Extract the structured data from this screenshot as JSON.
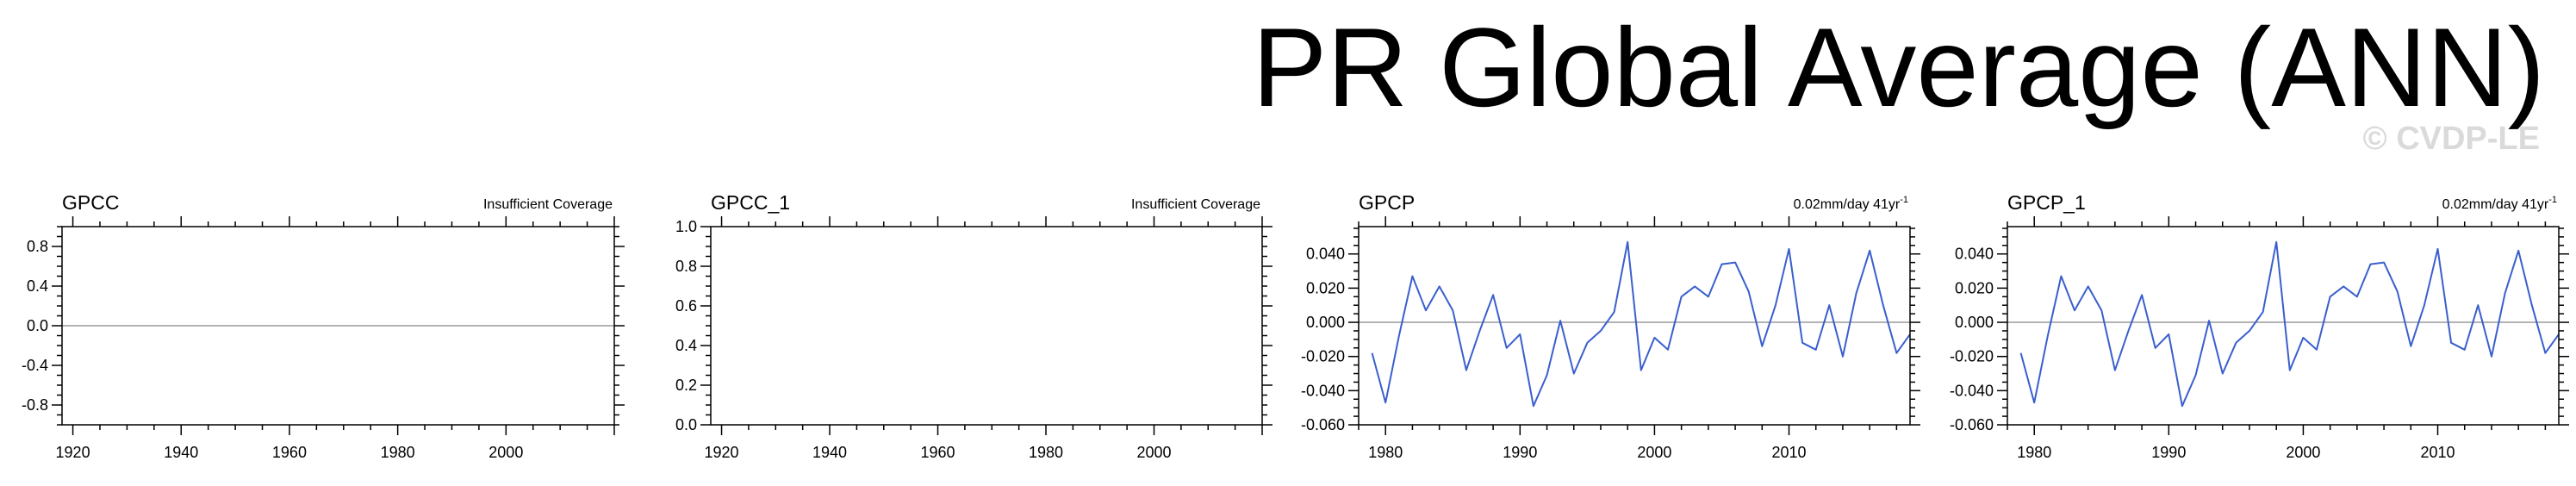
{
  "title": "PR Global Average (ANN)",
  "watermark": "© CVDP-LE",
  "colors": {
    "series": "#3a5fcd",
    "zero_line": "#9a9a9a",
    "axis": "#000000"
  },
  "chart_data": [
    {
      "type": "line",
      "name": "GPCC",
      "note": "Insufficient Coverage",
      "note_sup": "",
      "xlim": [
        1918,
        2020
      ],
      "xticks": [
        1920,
        1940,
        1960,
        1980,
        2000
      ],
      "ylim": [
        -1.0,
        1.0
      ],
      "yticks": [
        0.8,
        0.4,
        0.0,
        -0.4,
        -0.8
      ],
      "ytick_labels": [
        "0.8",
        "0.4",
        "0.0",
        "-0.4",
        "-0.8"
      ],
      "zero_line": true,
      "x": [],
      "y": []
    },
    {
      "type": "line",
      "name": "GPCC_1",
      "note": "Insufficient Coverage",
      "note_sup": "",
      "xlim": [
        1918,
        2020
      ],
      "xticks": [
        1920,
        1940,
        1960,
        1980,
        2000
      ],
      "ylim": [
        0.0,
        1.0
      ],
      "yticks": [
        1.0,
        0.8,
        0.6,
        0.4,
        0.2,
        0.0
      ],
      "ytick_labels": [
        "1.0",
        "0.8",
        "0.6",
        "0.4",
        "0.2",
        "0.0"
      ],
      "zero_line": false,
      "x": [],
      "y": []
    },
    {
      "type": "line",
      "name": "GPCP",
      "note": "0.02mm/day 41yr",
      "note_sup": "-1",
      "xlim": [
        1978,
        2019
      ],
      "xticks": [
        1980,
        1990,
        2000,
        2010
      ],
      "ylim": [
        -0.06,
        0.056
      ],
      "yticks": [
        0.04,
        0.02,
        0.0,
        -0.02,
        -0.04,
        -0.06
      ],
      "ytick_labels": [
        "0.040",
        "0.020",
        "0.000",
        "-0.020",
        "-0.040",
        "-0.060"
      ],
      "zero_line": true,
      "x": [
        1979,
        1980,
        1981,
        1982,
        1983,
        1984,
        1985,
        1986,
        1987,
        1988,
        1989,
        1990,
        1991,
        1992,
        1993,
        1994,
        1995,
        1996,
        1997,
        1998,
        1999,
        2000,
        2001,
        2002,
        2003,
        2004,
        2005,
        2006,
        2007,
        2008,
        2009,
        2010,
        2011,
        2012,
        2013,
        2014,
        2015,
        2016,
        2017,
        2018,
        2019
      ],
      "y": [
        -0.018,
        -0.047,
        -0.008,
        0.027,
        0.007,
        0.021,
        0.007,
        -0.028,
        -0.005,
        0.016,
        -0.015,
        -0.007,
        -0.049,
        -0.031,
        0.001,
        -0.03,
        -0.012,
        -0.005,
        0.006,
        0.047,
        -0.028,
        -0.009,
        -0.016,
        0.015,
        0.021,
        0.015,
        0.034,
        0.035,
        0.018,
        -0.014,
        0.01,
        0.043,
        -0.012,
        -0.016,
        0.01,
        -0.02,
        0.017,
        0.042,
        0.01,
        -0.018,
        -0.007
      ]
    },
    {
      "type": "line",
      "name": "GPCP_1",
      "note": "0.02mm/day 41yr",
      "note_sup": "-1",
      "xlim": [
        1978,
        2019
      ],
      "xticks": [
        1980,
        1990,
        2000,
        2010
      ],
      "ylim": [
        -0.06,
        0.056
      ],
      "yticks": [
        0.04,
        0.02,
        0.0,
        -0.02,
        -0.04,
        -0.06
      ],
      "ytick_labels": [
        "0.040",
        "0.020",
        "0.000",
        "-0.020",
        "-0.040",
        "-0.060"
      ],
      "zero_line": true,
      "x": [
        1979,
        1980,
        1981,
        1982,
        1983,
        1984,
        1985,
        1986,
        1987,
        1988,
        1989,
        1990,
        1991,
        1992,
        1993,
        1994,
        1995,
        1996,
        1997,
        1998,
        1999,
        2000,
        2001,
        2002,
        2003,
        2004,
        2005,
        2006,
        2007,
        2008,
        2009,
        2010,
        2011,
        2012,
        2013,
        2014,
        2015,
        2016,
        2017,
        2018,
        2019
      ],
      "y": [
        -0.018,
        -0.047,
        -0.008,
        0.027,
        0.007,
        0.021,
        0.007,
        -0.028,
        -0.005,
        0.016,
        -0.015,
        -0.007,
        -0.049,
        -0.031,
        0.001,
        -0.03,
        -0.012,
        -0.005,
        0.006,
        0.047,
        -0.028,
        -0.009,
        -0.016,
        0.015,
        0.021,
        0.015,
        0.034,
        0.035,
        0.018,
        -0.014,
        0.01,
        0.043,
        -0.012,
        -0.016,
        0.01,
        -0.02,
        0.017,
        0.042,
        0.01,
        -0.018,
        -0.007
      ]
    }
  ]
}
